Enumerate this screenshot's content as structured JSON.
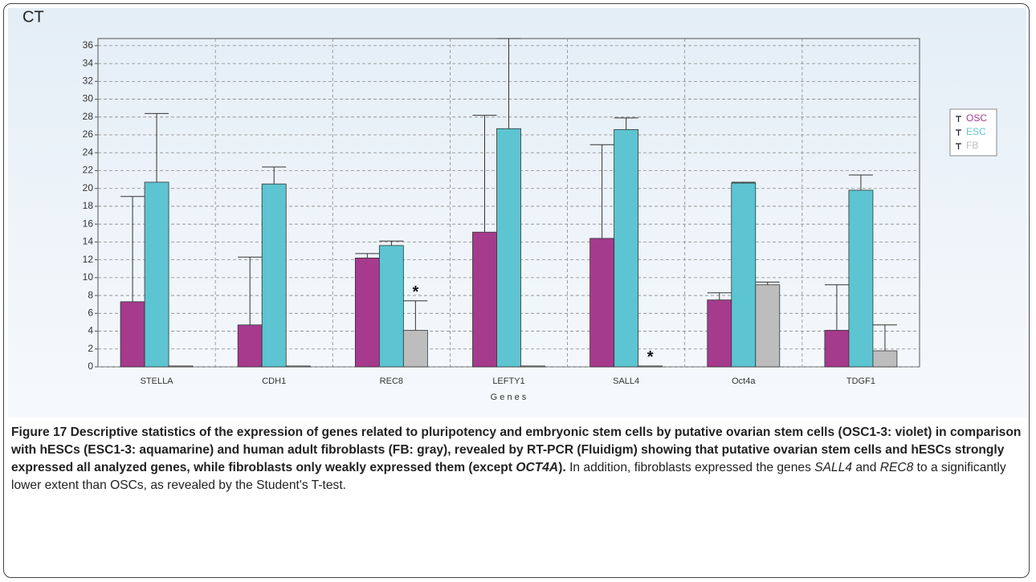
{
  "chart_data": {
    "type": "bar",
    "y_label": "CT",
    "x_label": "G e n e s",
    "categories": [
      "STELLA",
      "CDH1",
      "REC8",
      "LEFTY1",
      "SALL4",
      "Oct4a",
      "TDGF1"
    ],
    "series": [
      {
        "name": "OSC",
        "color": "#a63a8d",
        "values": [
          7.3,
          4.7,
          12.2,
          15.1,
          14.4,
          7.5,
          4.1
        ],
        "errors": [
          11.8,
          7.6,
          0.5,
          13.1,
          10.5,
          0.8,
          5.1
        ]
      },
      {
        "name": "ESC",
        "color": "#5cc5d1",
        "values": [
          20.7,
          20.5,
          13.6,
          26.7,
          26.6,
          20.6,
          19.8
        ],
        "errors": [
          7.7,
          1.9,
          0.5,
          10.1,
          1.3,
          0.1,
          1.7
        ]
      },
      {
        "name": "FB",
        "color": "#bdbdbd",
        "values": [
          0.1,
          0.1,
          4.1,
          0.1,
          0.1,
          9.2,
          1.8
        ],
        "errors": [
          0,
          0,
          3.3,
          0,
          0,
          0.3,
          2.9
        ]
      }
    ],
    "annotations": [
      {
        "text": "*",
        "category": "REC8",
        "series": "FB"
      },
      {
        "text": "*",
        "category": "SALL4",
        "series": "FB"
      }
    ],
    "ylim": [
      0,
      36.8
    ],
    "yticks": [
      0,
      2,
      4,
      6,
      8,
      10,
      12,
      14,
      16,
      18,
      20,
      22,
      24,
      26,
      28,
      30,
      32,
      34,
      36
    ],
    "grid": true,
    "legend": "right"
  },
  "caption": [
    {
      "text": "Figure 17 Descriptive statistics of the expression of genes related to pluripotency and embryonic stem cells by putative ovarian stem cells (OSC1-3: violet) in comparison with hESCs (ESC1-3: aquamarine) and human adult fibroblasts (FB: gray), revealed by RT-PCR (Fluidigm) showing that putative ovarian stem cells and hESCs strongly expressed all analyzed genes, while fibroblasts only weakly expressed them (except ",
      "bold": true,
      "italic": false
    },
    {
      "text": "OCT4A",
      "bold": true,
      "italic": true
    },
    {
      "text": ").",
      "bold": true,
      "italic": false
    },
    {
      "text": " In addition, fibroblasts expressed the genes ",
      "bold": false,
      "italic": false
    },
    {
      "text": "SALL4",
      "bold": false,
      "italic": true
    },
    {
      "text": " and ",
      "bold": false,
      "italic": false
    },
    {
      "text": "REC8",
      "bold": false,
      "italic": true
    },
    {
      "text": " to a significantly lower extent than OSCs, as revealed by the Student's T-test.",
      "bold": false,
      "italic": false
    }
  ]
}
